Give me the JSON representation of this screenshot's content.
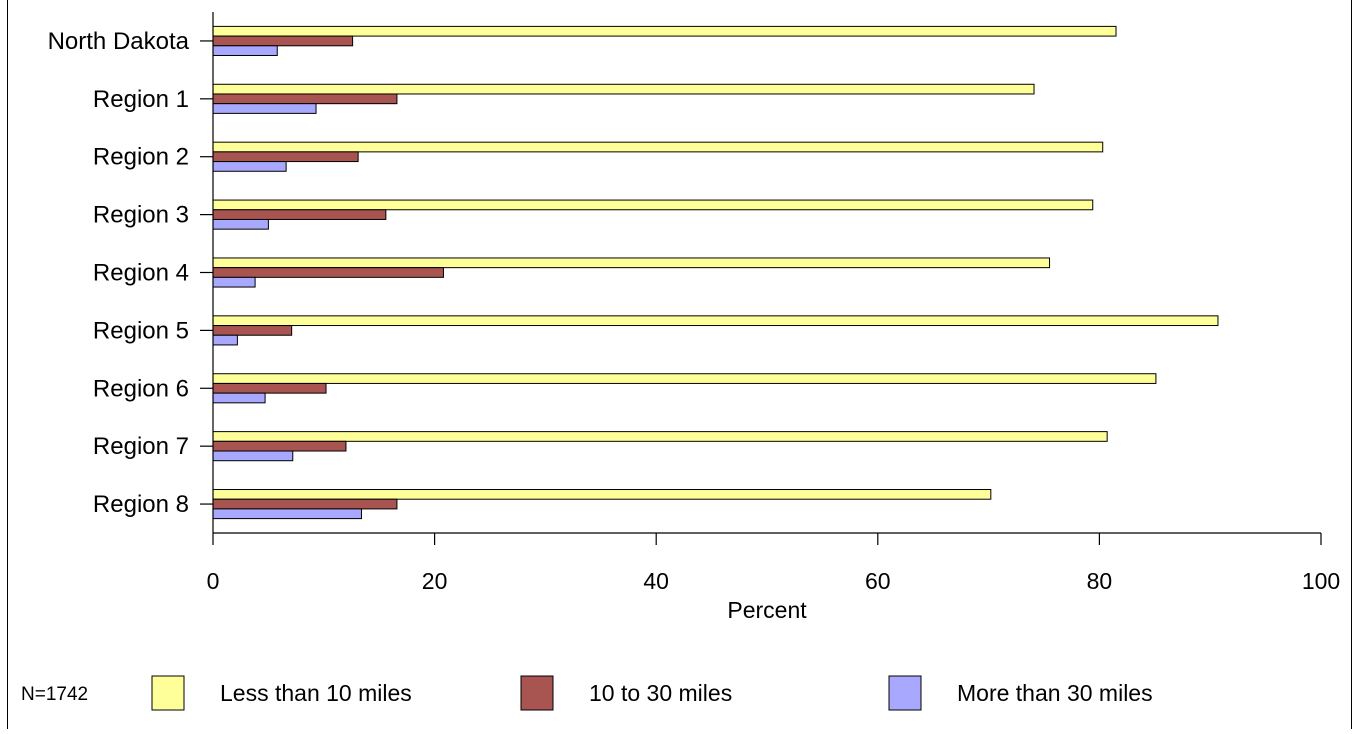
{
  "chart_data": {
    "type": "bar",
    "orientation": "horizontal",
    "categories": [
      "North Dakota",
      "Region 1",
      "Region 2",
      "Region 3",
      "Region 4",
      "Region 5",
      "Region 6",
      "Region 7",
      "Region 8"
    ],
    "series": [
      {
        "name": "Less than 10 miles",
        "color": "#ffff99",
        "values": [
          81.5,
          74.1,
          80.3,
          79.4,
          75.5,
          90.7,
          85.1,
          80.7,
          70.2
        ]
      },
      {
        "name": "10 to 30 miles",
        "color": "#a85450",
        "values": [
          12.6,
          16.6,
          13.1,
          15.6,
          20.8,
          7.1,
          10.2,
          12.0,
          16.6
        ]
      },
      {
        "name": "More than 30 miles",
        "color": "#a8a8ff",
        "values": [
          5.8,
          9.3,
          6.6,
          5.0,
          3.8,
          2.2,
          4.7,
          7.2,
          13.4
        ]
      }
    ],
    "xlabel": "Percent",
    "xlim": [
      0,
      100
    ],
    "xticks": [
      "0",
      "20",
      "40",
      "60",
      "80",
      "100"
    ],
    "grid": false,
    "legend_placement": "bottom",
    "note": "N=1742"
  }
}
